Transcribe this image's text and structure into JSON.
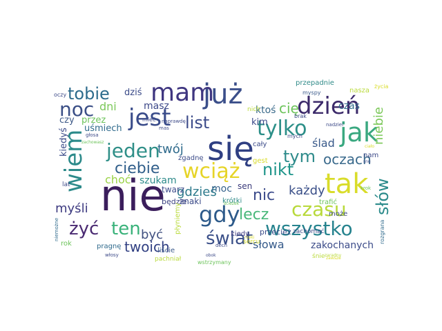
{
  "palette": {
    "background": "#ffffff"
  },
  "words": [
    {
      "text": "nie",
      "color": "#3b1e5c"
    },
    {
      "text": "się",
      "color": "#2f3f82"
    },
    {
      "text": "już",
      "color": "#3b4f8a"
    },
    {
      "text": "mam",
      "color": "#3f3680"
    },
    {
      "text": "jest",
      "color": "#3a4c8a"
    },
    {
      "text": "dzień",
      "color": "#3c2a6a"
    },
    {
      "text": "jak",
      "color": "#3aa880"
    },
    {
      "text": "tak",
      "color": "#d9dc2a"
    },
    {
      "text": "czasu",
      "color": "#b8d93a"
    },
    {
      "text": "wiem",
      "color": "#2c8a8a"
    },
    {
      "text": "wciąż",
      "color": "#e6d428"
    },
    {
      "text": "gdy",
      "color": "#2d5a8a"
    },
    {
      "text": "tylko",
      "color": "#2c8f88"
    },
    {
      "text": "noc",
      "color": "#3b4f86"
    },
    {
      "text": "jeden",
      "color": "#2f8f88"
    },
    {
      "text": "wszystko",
      "color": "#26838e"
    },
    {
      "text": "tobie",
      "color": "#2d6b8c"
    },
    {
      "text": "ciebie",
      "color": "#305e8a"
    },
    {
      "text": "list",
      "color": "#3d4c8a"
    },
    {
      "text": "świat",
      "color": "#3a4f88"
    },
    {
      "text": "ten",
      "color": "#39b27a"
    },
    {
      "text": "żyć",
      "color": "#4a2a72"
    },
    {
      "text": "nikt",
      "color": "#1f958a"
    },
    {
      "text": "nic",
      "color": "#3b4a8a"
    },
    {
      "text": "lecz",
      "color": "#4ab87a"
    },
    {
      "text": "tym",
      "color": "#2d8a8a"
    },
    {
      "text": "oczach",
      "color": "#3a6a8c"
    },
    {
      "text": "słów",
      "color": "#2a8a8a"
    },
    {
      "text": "twoich",
      "color": "#303f82"
    },
    {
      "text": "każdy",
      "color": "#3a4f88"
    },
    {
      "text": "gdzieś",
      "color": "#2e7a8c"
    },
    {
      "text": "myśli",
      "color": "#3d3a80"
    },
    {
      "text": "być",
      "color": "#405080"
    },
    {
      "text": "cię",
      "color": "#6cc35a"
    },
    {
      "text": "twój",
      "color": "#2f6a8c"
    },
    {
      "text": "choć",
      "color": "#9ad246"
    },
    {
      "text": "szukam",
      "color": "#2d8a8a"
    },
    {
      "text": "słowa",
      "color": "#355a8a"
    },
    {
      "text": "zakochanych",
      "color": "#3a4a88"
    },
    {
      "text": "niebie",
      "color": "#7cc85a"
    },
    {
      "text": "ślad",
      "color": "#3a5a8a"
    },
    {
      "text": "ktoś",
      "color": "#3a6a8a"
    },
    {
      "text": "czas",
      "color": "#2f6a8a"
    },
    {
      "text": "dni",
      "color": "#7cc85a"
    },
    {
      "text": "masz",
      "color": "#3c4888"
    },
    {
      "text": "dziś",
      "color": "#3a4a88"
    },
    {
      "text": "moc",
      "color": "#35628c"
    },
    {
      "text": "kim",
      "color": "#3d4a8a"
    },
    {
      "text": "sen",
      "color": "#3a3a7a"
    },
    {
      "text": "twarz",
      "color": "#3c4a8a"
    },
    {
      "text": "będzie",
      "color": "#3a4080"
    },
    {
      "text": "przez",
      "color": "#6cc35a"
    },
    {
      "text": "uśmiech",
      "color": "#2f6a8c"
    },
    {
      "text": "czy",
      "color": "#3f5a88"
    },
    {
      "text": "kiedyś",
      "color": "#3a4a88"
    },
    {
      "text": "znaki",
      "color": "#3a4a88"
    },
    {
      "text": "krótki",
      "color": "#2f8a88"
    },
    {
      "text": "liście",
      "color": "#3a5a8a"
    },
    {
      "text": "przecież",
      "color": "#3a4a88"
    },
    {
      "text": "płyniemy",
      "color": "#bada3c"
    },
    {
      "text": "pragnę",
      "color": "#2f6a8c"
    },
    {
      "text": "zgadnę",
      "color": "#3a4a88"
    },
    {
      "text": "cały",
      "color": "#3a4a88"
    },
    {
      "text": "trafić",
      "color": "#6cc35a"
    },
    {
      "text": "może",
      "color": "#3d4a88"
    },
    {
      "text": "nam",
      "color": "#3d4a88"
    },
    {
      "text": "lat",
      "color": "#3d4a88"
    },
    {
      "text": "rok",
      "color": "#6cc35a"
    },
    {
      "text": "kiedy",
      "color": "#3d3a80"
    },
    {
      "text": "gest",
      "color": "#d9dc2a"
    },
    {
      "text": "sercu",
      "color": "#d9dc2a"
    },
    {
      "text": "zachomać",
      "color": "#3d4a88"
    },
    {
      "text": "przepadnie",
      "color": "#2f8a88"
    },
    {
      "text": "nasza",
      "color": "#bada3c"
    },
    {
      "text": "życia",
      "color": "#d9dc2a"
    },
    {
      "text": "myspy",
      "color": "#3a5a8a"
    },
    {
      "text": "oczy",
      "color": "#3d4a88"
    },
    {
      "text": "mieć",
      "color": "#3d4a88"
    },
    {
      "text": "naprawdę",
      "color": "#3d4a88"
    },
    {
      "text": "głosa",
      "color": "#3d4a88"
    },
    {
      "text": "mas",
      "color": "#3d4a88"
    },
    {
      "text": "nich",
      "color": "#bada3c"
    },
    {
      "text": "brak",
      "color": "#3d4a88"
    },
    {
      "text": "nadziei",
      "color": "#3d4a88"
    },
    {
      "text": "mych",
      "color": "#3d4a88"
    },
    {
      "text": "pachniał",
      "color": "#bada3c"
    },
    {
      "text": "rozgrana",
      "color": "#2f6a8c"
    },
    {
      "text": "śnie",
      "color": "#bada3c"
    },
    {
      "text": "dech",
      "color": "#3d4a88"
    },
    {
      "text": "wstrzymany",
      "color": "#6cc35a"
    },
    {
      "text": "niemożne",
      "color": "#2f6a8c"
    },
    {
      "text": "włosy",
      "color": "#3d4a88"
    },
    {
      "text": "obok",
      "color": "#3d4a88"
    },
    {
      "text": "krok",
      "color": "#6cc35a"
    },
    {
      "text": "snu",
      "color": "#3d4a88"
    },
    {
      "text": "ciało",
      "color": "#d9dc2a"
    },
    {
      "text": "zawsze",
      "color": "#d9dc2a"
    },
    {
      "text": "zachowasz",
      "color": "#6cc35a"
    },
    {
      "text": "ścieżek",
      "color": "#6cc35a"
    },
    {
      "text": "rzeki",
      "color": "#d9dc2a"
    },
    {
      "text": "zaradny",
      "color": "#bada3c"
    }
  ]
}
